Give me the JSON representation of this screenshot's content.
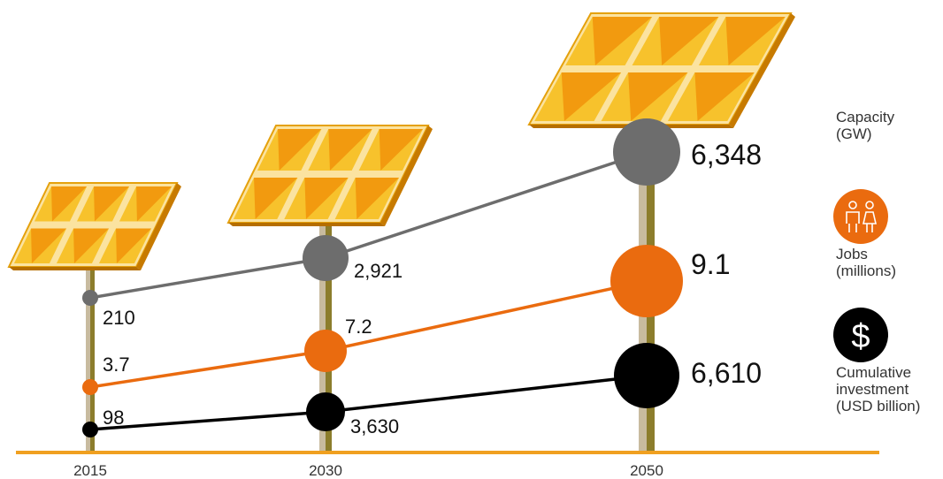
{
  "chart_data": {
    "type": "scatter",
    "title": "",
    "categories": [
      "2015",
      "2030",
      "2050"
    ],
    "series": [
      {
        "name": "Capacity (GW)",
        "values": [
          210,
          2921,
          6348
        ],
        "labels": [
          "210",
          "2,921",
          "6,348"
        ],
        "color": "#6d6d6d",
        "icon": ""
      },
      {
        "name": "Jobs (millions)",
        "values": [
          3.7,
          7.2,
          9.1
        ],
        "labels": [
          "3.7",
          "7.2",
          "9.1"
        ],
        "color": "#ea6b0f",
        "icon": "people-icon"
      },
      {
        "name": "Cumulative investment (USD billion)",
        "values": [
          98,
          3630,
          6610
        ],
        "labels": [
          "98",
          "3,630",
          "6,610"
        ],
        "color": "#000000",
        "icon": "dollar-icon"
      }
    ],
    "legend": {
      "placement": "right",
      "entries": [
        {
          "lines": [
            "Capacity",
            "(GW)"
          ]
        },
        {
          "lines": [
            "Jobs",
            "(millions)"
          ]
        },
        {
          "lines": [
            "Cumulative",
            "investment",
            "(USD billion)"
          ]
        }
      ]
    },
    "colors": {
      "ground": "#f0a020",
      "pole_light": "#c6b79a",
      "pole_dark": "#8a7a2a",
      "panel": "#f4a30c",
      "panel_dark": "#d98300"
    }
  }
}
